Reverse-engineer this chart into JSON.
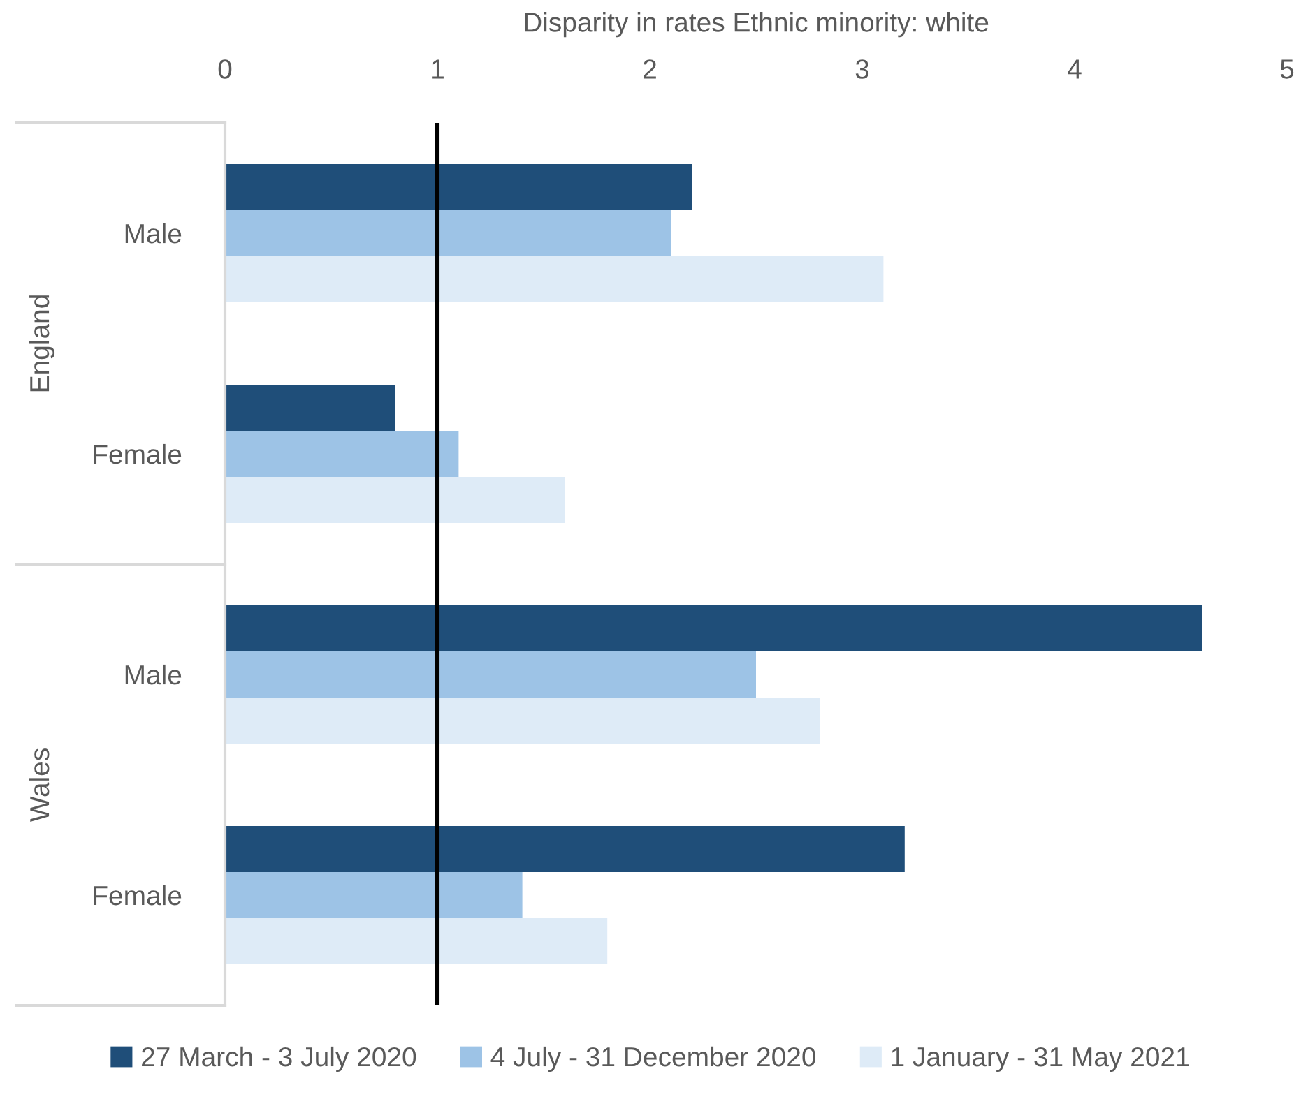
{
  "chart_data": {
    "type": "bar",
    "orientation": "horizontal",
    "xlabel": "Disparity in rates Ethnic minority: white",
    "categories": [
      "Male",
      "Female",
      "Male",
      "Female"
    ],
    "series": [
      {
        "name": "27 March - 3 July 2020",
        "color": "#1f4e79",
        "values": [
          2.2,
          0.8,
          4.6,
          3.2
        ]
      },
      {
        "name": "4 July - 31 December 2020",
        "color": "#9dc3e6",
        "values": [
          2.1,
          1.1,
          2.5,
          1.4
        ]
      },
      {
        "name": "1 January - 31 May 2021",
        "color": "#deebf7",
        "values": [
          3.1,
          1.6,
          2.8,
          1.8
        ]
      }
    ],
    "xlim": [
      0,
      5
    ],
    "xticks": [
      0,
      1,
      2,
      3,
      4,
      5
    ],
    "ref_lines": [
      {
        "axis": "x",
        "value": 1,
        "color": "#000000"
      }
    ],
    "annotations": [
      "England",
      "Wales"
    ],
    "legend": "bottom"
  }
}
